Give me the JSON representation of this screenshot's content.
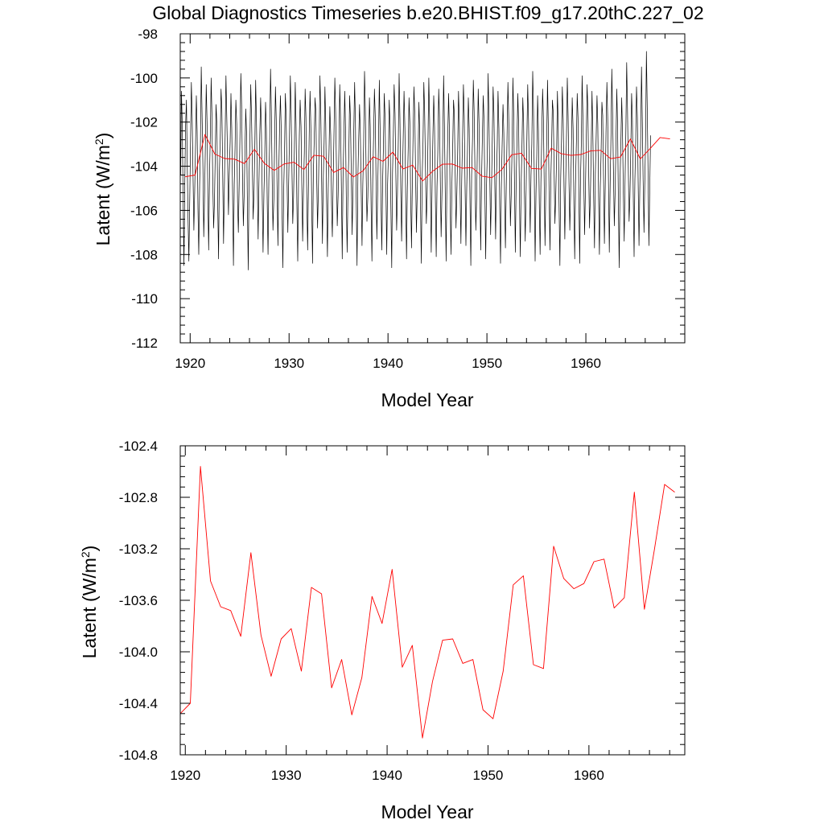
{
  "figure": {
    "title": "Global Diagnostics Timeseries b.e20.BHIST.f09_g17.20thC.227_02"
  },
  "chart_data": [
    {
      "type": "line",
      "name": "monthly-and-annual-latent",
      "xlabel": "Model Year",
      "ylabel": "Latent (W/m",
      "ylabel_sup": "2",
      "ylabel_close": ")",
      "xlim": [
        1919.0,
        1970.0
      ],
      "ylim": [
        -112,
        -98
      ],
      "xticks": [
        1920,
        1930,
        1940,
        1950,
        1960
      ],
      "yticks": [
        -112,
        -110,
        -108,
        -106,
        -104,
        -102,
        -100,
        -98
      ],
      "ytick_labels": [
        "-112",
        "-110",
        "-108",
        "-106",
        "-104",
        "-102",
        "-100",
        "-98"
      ],
      "grid": false,
      "series": [
        {
          "color": "#000000",
          "start_year": 1919.04,
          "step": 0.0833333,
          "values": [
            -104.4,
            -100.6,
            -102.1,
            -105.7,
            -108.5,
            -104.9,
            -102.2,
            -101.0,
            -103.9,
            -106.4,
            -108.3,
            -105.5,
            -102.8,
            -100.2,
            -101.8,
            -104.5,
            -106.9,
            -105.2,
            -103.3,
            -100.8,
            -102.4,
            -105.9,
            -108.0,
            -104.8,
            -102.9,
            -99.5,
            -101.6,
            -104.1,
            -107.2,
            -105.4,
            -103.1,
            -100.3,
            -102.0,
            -105.3,
            -107.8,
            -104.6,
            -102.5,
            -100.0,
            -101.7,
            -104.7,
            -106.8,
            -105.6,
            -103.5,
            -101.2,
            -102.2,
            -105.8,
            -108.2,
            -104.3,
            -102.8,
            -100.5,
            -101.4,
            -104.2,
            -107.5,
            -105.0,
            -102.6,
            -99.9,
            -101.9,
            -103.8,
            -106.2,
            -104.4,
            -102.9,
            -100.7,
            -102.3,
            -105.1,
            -108.5,
            -104.8,
            -103.2,
            -101.0,
            -102.1,
            -105.6,
            -107.0,
            -104.9,
            -102.4,
            -99.8,
            -101.3,
            -104.3,
            -106.7,
            -105.3,
            -103.4,
            -101.4,
            -102.6,
            -105.9,
            -108.7,
            -104.5,
            -102.7,
            -100.3,
            -101.8,
            -104.0,
            -106.4,
            -105.1,
            -103.0,
            -100.1,
            -102.0,
            -104.8,
            -107.3,
            -104.7,
            -102.6,
            -100.9,
            -102.5,
            -105.4,
            -107.9,
            -105.2,
            -103.6,
            -101.1,
            -102.3,
            -105.7,
            -108.0,
            -104.6,
            -102.9,
            -99.6,
            -101.5,
            -104.5,
            -106.9,
            -105.5,
            -102.8,
            -100.4,
            -101.9,
            -105.2,
            -107.6,
            -104.4,
            -102.3,
            -100.8,
            -102.4,
            -105.9,
            -108.6,
            -105.0,
            -103.3,
            -100.7,
            -101.7,
            -104.6,
            -107.0,
            -104.8,
            -102.7,
            -99.9,
            -101.6,
            -104.1,
            -106.6,
            -105.4,
            -103.1,
            -100.2,
            -102.1,
            -105.6,
            -108.3,
            -104.7,
            -102.6,
            -101.0,
            -102.2,
            -105.0,
            -107.4,
            -105.1,
            -103.4,
            -100.5,
            -101.8,
            -105.3,
            -107.8,
            -104.9,
            -102.5,
            -100.6,
            -102.4,
            -105.8,
            -108.4,
            -104.3,
            -102.8,
            -100.9,
            -101.5,
            -104.4,
            -106.8,
            -105.2,
            -103.0,
            -99.9,
            -101.7,
            -104.7,
            -107.5,
            -104.6,
            -102.9,
            -100.4,
            -102.1,
            -105.4,
            -108.1,
            -105.0,
            -103.3,
            -101.3,
            -102.6,
            -105.7,
            -107.2,
            -104.8,
            -102.4,
            -100.0,
            -101.6,
            -104.0,
            -106.7,
            -105.3,
            -103.2,
            -100.3,
            -101.9,
            -105.1,
            -108.2,
            -104.5,
            -102.7,
            -100.6,
            -102.3,
            -105.6,
            -107.9,
            -104.9,
            -103.4,
            -100.8,
            -101.8,
            -104.5,
            -107.1,
            -105.1,
            -102.5,
            -100.2,
            -102.0,
            -105.5,
            -108.5,
            -104.4,
            -102.7,
            -101.2,
            -102.5,
            -105.2,
            -107.6,
            -104.8,
            -103.0,
            -99.7,
            -101.4,
            -104.2,
            -106.5,
            -105.4,
            -103.3,
            -100.9,
            -102.2,
            -105.9,
            -108.3,
            -104.6,
            -102.8,
            -100.5,
            -101.7,
            -104.6,
            -107.3,
            -105.2,
            -102.9,
            -100.1,
            -102.4,
            -105.4,
            -107.8,
            -104.7,
            -103.1,
            -100.7,
            -101.9,
            -105.0,
            -108.0,
            -104.9,
            -103.5,
            -101.0,
            -102.1,
            -105.7,
            -108.6,
            -104.3,
            -102.6,
            -100.3,
            -101.6,
            -104.3,
            -106.9,
            -105.3,
            -102.8,
            -99.8,
            -101.8,
            -104.9,
            -107.4,
            -104.5,
            -102.7,
            -100.6,
            -102.3,
            -105.5,
            -108.2,
            -105.0,
            -103.2,
            -100.9,
            -102.0,
            -105.3,
            -107.7,
            -104.8,
            -102.5,
            -100.4,
            -101.7,
            -104.5,
            -107.0,
            -105.2,
            -103.4,
            -101.1,
            -102.5,
            -105.8,
            -108.4,
            -104.4,
            -102.9,
            -100.2,
            -101.5,
            -104.2,
            -106.6,
            -105.4,
            -103.0,
            -100.0,
            -101.9,
            -105.0,
            -107.9,
            -104.7,
            -102.6,
            -100.8,
            -102.2,
            -105.6,
            -108.1,
            -104.9,
            -103.3,
            -100.5,
            -101.8,
            -104.7,
            -107.2,
            -105.1,
            -102.8,
            -99.9,
            -102.1,
            -105.4,
            -108.3,
            -104.5,
            -102.7,
            -100.7,
            -102.4,
            -105.9,
            -108.0,
            -104.8,
            -103.1,
            -101.0,
            -101.6,
            -104.4,
            -106.8,
            -105.3,
            -103.5,
            -100.6,
            -102.0,
            -105.2,
            -107.5,
            -104.6,
            -102.5,
            -100.3,
            -101.7,
            -104.8,
            -107.6,
            -105.0,
            -103.2,
            -100.9,
            -102.3,
            -105.7,
            -108.5,
            -104.4,
            -102.8,
            -100.1,
            -101.5,
            -104.1,
            -106.9,
            -105.5,
            -103.0,
            -100.5,
            -102.2,
            -105.3,
            -107.8,
            -104.7,
            -102.6,
            -100.8,
            -101.9,
            -105.0,
            -108.2,
            -104.9,
            -103.4,
            -99.8,
            -102.0,
            -104.6,
            -107.1,
            -105.2,
            -102.7,
            -100.4,
            -101.6,
            -104.5,
            -107.3,
            -104.6,
            -103.1,
            -100.6,
            -102.3,
            -105.8,
            -108.4,
            -105.0,
            -102.9,
            -101.2,
            -102.5,
            -105.4,
            -107.7,
            -104.8,
            -102.5,
            -100.2,
            -101.8,
            -104.3,
            -106.7,
            -105.3,
            -103.3,
            -100.0,
            -101.7,
            -104.9,
            -107.9,
            -104.5,
            -102.8,
            -100.7,
            -102.1,
            -105.5,
            -108.1,
            -104.9,
            -103.2,
            -100.9,
            -102.0,
            -105.2,
            -107.4,
            -105.1,
            -102.6,
            -100.3,
            -101.9,
            -104.7,
            -107.0,
            -104.4,
            -103.0,
            -99.7,
            -101.5,
            -104.6,
            -108.3,
            -105.2,
            -103.4,
            -100.8,
            -102.4,
            -105.7,
            -108.0,
            -104.7,
            -102.7,
            -100.5,
            -101.8,
            -104.8,
            -107.6,
            -105.0,
            -102.9,
            -100.1,
            -102.2,
            -105.3,
            -107.8,
            -104.6,
            -103.1,
            -101.0,
            -101.6,
            -104.2,
            -106.6,
            -105.4,
            -103.5,
            -100.6,
            -102.1,
            -105.6,
            -108.5,
            -104.5,
            -102.8,
            -100.4,
            -101.9,
            -104.9,
            -107.3,
            -104.9,
            -102.6,
            -100.0,
            -101.7,
            -104.5,
            -106.9,
            -105.2,
            -103.3,
            -100.9,
            -102.3,
            -105.8,
            -108.2,
            -104.8,
            -102.9,
            -100.7,
            -101.8,
            -105.0,
            -108.4,
            -104.6,
            -103.0,
            -99.9,
            -102.0,
            -104.7,
            -107.1,
            -105.1,
            -102.7,
            -100.3,
            -101.5,
            -104.3,
            -106.8,
            -105.3,
            -103.2,
            -100.6,
            -102.4,
            -105.5,
            -107.7,
            -104.4,
            -102.8,
            -100.8,
            -102.1,
            -105.4,
            -108.0,
            -104.9,
            -103.4,
            -101.1,
            -101.7,
            -104.6,
            -107.5,
            -105.0,
            -102.5,
            -100.2,
            -101.8,
            -104.8,
            -107.9,
            -104.7,
            -102.6,
            -99.6,
            -101.6,
            -104.4,
            -106.7,
            -105.2,
            -103.1,
            -100.5,
            -102.2,
            -105.7,
            -108.6,
            -104.5,
            -102.9,
            -100.9,
            -102.5,
            -105.3,
            -107.4,
            -104.8,
            -102.6,
            -99.3,
            -101.4,
            -104.1,
            -106.5,
            -105.4,
            -103.3,
            -100.7,
            -101.9,
            -105.1,
            -108.1,
            -104.6,
            -102.9,
            -100.4,
            -101.8,
            -104.9,
            -107.6,
            -105.0,
            -102.7,
            -99.5,
            -101.9,
            -104.6,
            -107.0,
            -104.7,
            -102.8,
            -98.8,
            -101.5,
            -104.4,
            -107.6,
            -105.1,
            -102.6
          ]
        },
        {
          "color": "#ff0000",
          "start_year": 1919.5,
          "step": 1,
          "values": [
            -104.48,
            -104.4,
            -102.56,
            -103.45,
            -103.65,
            -103.68,
            -103.88,
            -103.23,
            -103.87,
            -104.19,
            -103.9,
            -103.82,
            -104.15,
            -103.5,
            -103.55,
            -104.28,
            -104.06,
            -104.49,
            -104.2,
            -103.57,
            -103.78,
            -103.36,
            -104.12,
            -103.95,
            -104.67,
            -104.23,
            -103.91,
            -103.9,
            -104.09,
            -104.06,
            -104.45,
            -104.52,
            -104.15,
            -103.48,
            -103.41,
            -104.1,
            -104.13,
            -103.18,
            -103.43,
            -103.51,
            -103.47,
            -103.3,
            -103.28,
            -103.66,
            -103.58,
            -102.76,
            -103.67,
            -103.2,
            -102.7,
            -102.76
          ]
        }
      ]
    },
    {
      "type": "line",
      "name": "annual-latent",
      "xlabel": "Model Year",
      "ylabel": "Latent (W/m",
      "ylabel_sup": "2",
      "ylabel_close": ")",
      "xlim": [
        1919.5,
        1969.5
      ],
      "ylim": [
        -104.8,
        -102.4
      ],
      "xticks": [
        1920,
        1930,
        1940,
        1950,
        1960
      ],
      "yticks": [
        -104.8,
        -104.4,
        -104.0,
        -103.6,
        -103.2,
        -102.8,
        -102.4
      ],
      "ytick_labels": [
        "-104.8",
        "-104.4",
        "-104.0",
        "-103.6",
        "-103.2",
        "-102.8",
        "-102.4"
      ],
      "grid": false,
      "series": [
        {
          "color": "#ff0000",
          "start_year": 1919.5,
          "step": 1,
          "values": [
            -104.48,
            -104.4,
            -102.56,
            -103.45,
            -103.65,
            -103.68,
            -103.88,
            -103.23,
            -103.87,
            -104.19,
            -103.9,
            -103.82,
            -104.15,
            -103.5,
            -103.55,
            -104.28,
            -104.06,
            -104.49,
            -104.2,
            -103.57,
            -103.78,
            -103.36,
            -104.12,
            -103.95,
            -104.67,
            -104.23,
            -103.91,
            -103.9,
            -104.09,
            -104.06,
            -104.45,
            -104.52,
            -104.15,
            -103.48,
            -103.41,
            -104.1,
            -104.13,
            -103.18,
            -103.43,
            -103.51,
            -103.47,
            -103.3,
            -103.28,
            -103.66,
            -103.58,
            -102.76,
            -103.67,
            -103.2,
            -102.7,
            -102.76
          ]
        }
      ]
    }
  ]
}
